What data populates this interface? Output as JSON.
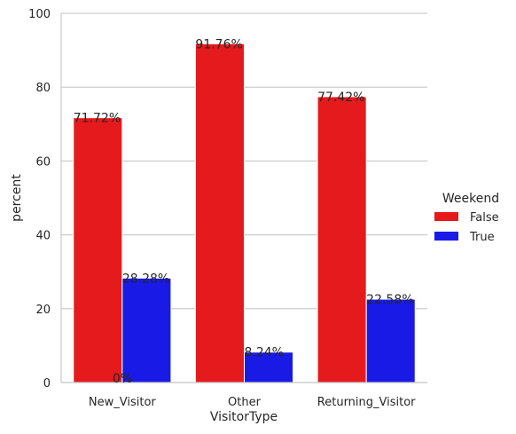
{
  "chart_data": {
    "type": "bar",
    "title": "",
    "xlabel": "VisitorType",
    "ylabel": "percent",
    "categories": [
      "New_Visitor",
      "Other",
      "Returning_Visitor"
    ],
    "ylim": [
      0,
      100
    ],
    "yticks": [
      0,
      20,
      40,
      60,
      80,
      100
    ],
    "grid": true,
    "legend": {
      "title": "Weekend",
      "position": "right"
    },
    "series": [
      {
        "name": "False",
        "color": "#e41a1c",
        "values": [
          71.72,
          91.76,
          77.42
        ],
        "labels": [
          "71.72%",
          "91.76%",
          "77.42%"
        ]
      },
      {
        "name": "True",
        "color": "#1a1ae6",
        "values": [
          28.28,
          8.24,
          22.58
        ],
        "labels": [
          "28.28%",
          "8.24%",
          "22.58%"
        ]
      }
    ],
    "annotations": [
      "0%"
    ]
  }
}
